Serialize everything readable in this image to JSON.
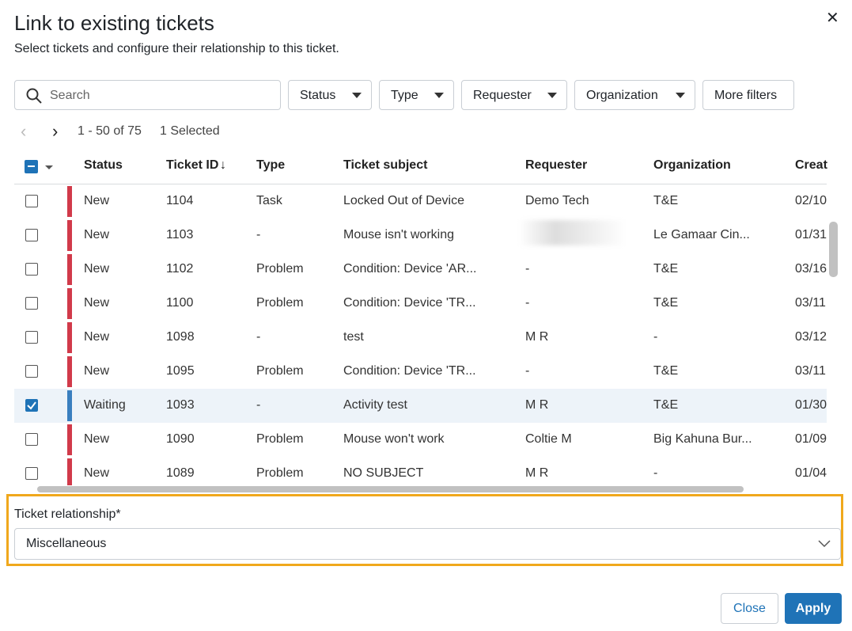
{
  "header": {
    "title": "Link to existing tickets",
    "subtitle": "Select tickets and configure their relationship to this ticket."
  },
  "search": {
    "placeholder": "Search"
  },
  "filters": [
    "Status",
    "Type",
    "Requester",
    "Organization"
  ],
  "more_filters": "More filters",
  "pagination": {
    "range": "1 - 50 of 75",
    "selected": "1 Selected"
  },
  "table": {
    "columns": [
      "Status",
      "Ticket ID",
      "Type",
      "Ticket subject",
      "Requester",
      "Organization",
      "Creat"
    ],
    "rows": [
      [
        "New",
        1104,
        "Task",
        "Locked Out of Device",
        "Demo Tech",
        "T&E",
        "02/10"
      ],
      [
        "New",
        1103,
        "-",
        "Mouse isn't working",
        null,
        "Le Gamaar Cin...",
        "01/31"
      ],
      [
        "New",
        1102,
        "Problem",
        "Condition: Device 'AR...",
        "-",
        "T&E",
        "03/16"
      ],
      [
        "New",
        1100,
        "Problem",
        "Condition: Device 'TR...",
        "-",
        "T&E",
        "03/11"
      ],
      [
        "New",
        1098,
        "-",
        "test",
        "M R",
        "-",
        "03/12"
      ],
      [
        "New",
        1095,
        "Problem",
        "Condition: Device 'TR...",
        "-",
        "T&E",
        "03/11"
      ],
      [
        "Waiting",
        1093,
        "-",
        "Activity test",
        "M R",
        "T&E",
        "01/30"
      ],
      [
        "New",
        1090,
        "Problem",
        "Mouse won't work",
        "Coltie M",
        "Big Kahuna Bur...",
        "01/09"
      ],
      [
        "New",
        1089,
        "Problem",
        "NO SUBJECT",
        "M R",
        "-",
        "01/04"
      ]
    ]
  },
  "relationship": {
    "label": "Ticket relationship*",
    "value": "Miscellaneous"
  },
  "buttons": {
    "close": "Close",
    "apply": "Apply"
  }
}
